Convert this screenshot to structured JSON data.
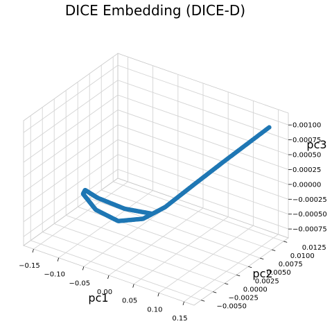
{
  "chart_data": {
    "type": "scatter",
    "projection": "3d",
    "title": "DICE Embedding (DICE-D)",
    "xlabel": "pc1",
    "ylabel": "pc2",
    "zlabel": "pc3",
    "xlim": [
      -0.17,
      0.17
    ],
    "ylim": [
      -0.0065,
      0.0135
    ],
    "zlim": [
      -0.0009,
      0.0012
    ],
    "x_ticks": [
      -0.15,
      -0.1,
      -0.05,
      0.0,
      0.05,
      0.1,
      0.15
    ],
    "x_tick_labels": [
      "−0.15",
      "−0.10",
      "−0.05",
      "0.00",
      "0.05",
      "0.10",
      "0.15"
    ],
    "y_ticks": [
      -0.005,
      -0.0025,
      0.0,
      0.0025,
      0.005,
      0.0075,
      0.01,
      0.0125
    ],
    "y_tick_labels": [
      "−0.0050",
      "−0.0025",
      "0.0000",
      "0.0025",
      "0.0050",
      "0.0075",
      "0.0100",
      "0.0125"
    ],
    "z_ticks": [
      -0.00075,
      -0.0005,
      -0.00025,
      0.0,
      0.00025,
      0.0005,
      0.00075,
      0.001
    ],
    "z_tick_labels": [
      "−0.00075",
      "−0.00050",
      "−0.00025",
      "0.00000",
      "0.00025",
      "0.00050",
      "0.00075",
      "0.00100"
    ],
    "grid": true,
    "series": [
      {
        "color": "#1f77b4",
        "point_count": 400,
        "x": [
          0.02,
          -0.02,
          -0.06,
          -0.08,
          -0.07,
          -0.04,
          0.0,
          0.04,
          0.07,
          0.1,
          0.13,
          0.16
        ],
        "y": [
          0.0005,
          -0.001,
          -0.0025,
          -0.003,
          -0.0045,
          -0.005,
          -0.0045,
          -0.0035,
          -0.002,
          0.0005,
          0.004,
          0.0105
        ],
        "z": [
          -0.0002,
          -0.00015,
          0.0,
          0.0001,
          0.00015,
          0.0,
          -0.0001,
          0.0,
          0.0002,
          0.0005,
          0.0008,
          0.0011
        ]
      }
    ]
  }
}
